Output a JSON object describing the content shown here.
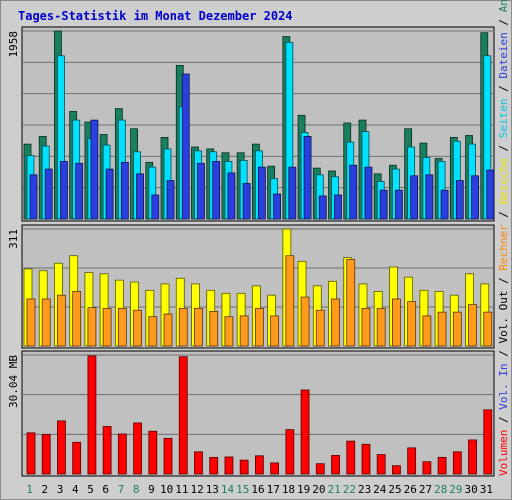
{
  "title": "Tages-Statistik im Monat Dezember 2024",
  "colors": {
    "title": "#0000cc",
    "background": "#cecece",
    "plot": "#c0c0c0",
    "anfragen": "#1a7f5e",
    "dateien": "#00e0ff",
    "seiten": "#2a3fe0",
    "besuche": "#ffff00",
    "rechner": "#ff9a1a",
    "volumen": "#ff0000",
    "weekday": "#000000",
    "weekend": "#1f7f5e"
  },
  "legend": {
    "top": [
      {
        "label": "Anfragen",
        "color": "#1a7f5e"
      },
      {
        "label": " / ",
        "color": "#000000"
      },
      {
        "label": "Dateien",
        "color": "#2a3fe0"
      },
      {
        "label": " / ",
        "color": "#000000"
      },
      {
        "label": "Seiten",
        "color": "#00c8e0"
      },
      {
        "label": " / ",
        "color": "#000000"
      },
      {
        "label": "Besuche",
        "color": "#e8e800"
      },
      {
        "label": " / ",
        "color": "#000000"
      },
      {
        "label": "Rechner",
        "color": "#ff8800"
      },
      {
        "label": " / ",
        "color": "#000000"
      },
      {
        "label": "Vol. Out",
        "color": "#000000"
      },
      {
        "label": " / ",
        "color": "#000000"
      },
      {
        "label": "Vol. In",
        "color": "#2a3fe0"
      },
      {
        "label": " / ",
        "color": "#000000"
      },
      {
        "label": "Volumen",
        "color": "#ff0000"
      }
    ]
  },
  "chart_data": [
    {
      "type": "bar",
      "panel": "anfragen-dateien-seiten",
      "ymax_label": "1958",
      "ylim": [
        0,
        1958
      ],
      "categories": [
        "1",
        "2",
        "3",
        "4",
        "5",
        "6",
        "7",
        "8",
        "9",
        "10",
        "11",
        "12",
        "13",
        "14",
        "15",
        "16",
        "17",
        "18",
        "19",
        "20",
        "21",
        "22",
        "23",
        "24",
        "25",
        "26",
        "27",
        "28",
        "29",
        "30",
        "31"
      ],
      "weekend_days": [
        "1",
        "7",
        "8",
        "14",
        "15",
        "21",
        "22",
        "28",
        "29"
      ],
      "series": [
        {
          "name": "Anfragen",
          "values": [
            780,
            860,
            1958,
            1120,
            1010,
            880,
            1150,
            940,
            590,
            850,
            1600,
            750,
            730,
            690,
            690,
            780,
            550,
            1900,
            1080,
            530,
            500,
            1000,
            1030,
            470,
            560,
            940,
            790,
            630,
            850,
            870,
            1940
          ]
        },
        {
          "name": "Dateien",
          "values": [
            660,
            760,
            1700,
            1030,
            840,
            770,
            1030,
            700,
            540,
            730,
            1170,
            710,
            700,
            600,
            610,
            710,
            420,
            1840,
            900,
            460,
            440,
            800,
            910,
            390,
            520,
            750,
            640,
            600,
            810,
            780,
            1700
          ]
        },
        {
          "name": "Seiten",
          "values": [
            460,
            520,
            600,
            580,
            1030,
            520,
            590,
            470,
            250,
            400,
            1510,
            580,
            600,
            480,
            370,
            540,
            260,
            540,
            860,
            240,
            250,
            560,
            540,
            300,
            300,
            450,
            460,
            300,
            400,
            450,
            510
          ]
        }
      ]
    },
    {
      "type": "bar",
      "panel": "besuche-rechner",
      "ymax_label": "311",
      "ylim": [
        0,
        311
      ],
      "categories": [
        "1",
        "2",
        "3",
        "4",
        "5",
        "6",
        "7",
        "8",
        "9",
        "10",
        "11",
        "12",
        "13",
        "14",
        "15",
        "16",
        "17",
        "18",
        "19",
        "20",
        "21",
        "22",
        "23",
        "24",
        "25",
        "26",
        "27",
        "28",
        "29",
        "30",
        "31"
      ],
      "series": [
        {
          "name": "Besuche",
          "values": [
            205,
            200,
            220,
            240,
            195,
            192,
            175,
            170,
            148,
            165,
            180,
            165,
            148,
            140,
            140,
            160,
            135,
            311,
            225,
            160,
            172,
            235,
            165,
            145,
            210,
            183,
            148,
            145,
            135,
            192,
            165
          ]
        },
        {
          "name": "Rechner",
          "values": [
            125,
            125,
            135,
            145,
            102,
            100,
            100,
            95,
            78,
            85,
            100,
            100,
            92,
            78,
            80,
            100,
            80,
            240,
            130,
            95,
            125,
            230,
            100,
            100,
            125,
            118,
            80,
            90,
            90,
            110,
            90
          ]
        }
      ]
    },
    {
      "type": "bar",
      "panel": "volumen",
      "ymax_label": "30.04 MB",
      "ylim": [
        0,
        30.04
      ],
      "categories": [
        "1",
        "2",
        "3",
        "4",
        "5",
        "6",
        "7",
        "8",
        "9",
        "10",
        "11",
        "12",
        "13",
        "14",
        "15",
        "16",
        "17",
        "18",
        "19",
        "20",
        "21",
        "22",
        "23",
        "24",
        "25",
        "26",
        "27",
        "28",
        "29",
        "30",
        "31"
      ],
      "series": [
        {
          "name": "Volumen",
          "values": [
            10.4,
            10.0,
            13.4,
            8.0,
            29.8,
            12.0,
            10.1,
            12.9,
            10.8,
            9.0,
            29.6,
            5.6,
            4.2,
            4.3,
            3.5,
            4.6,
            2.8,
            11.2,
            21.2,
            2.6,
            4.7,
            8.3,
            7.5,
            4.9,
            2.1,
            6.6,
            3.1,
            4.2,
            5.6,
            8.6,
            16.2
          ]
        }
      ]
    }
  ]
}
